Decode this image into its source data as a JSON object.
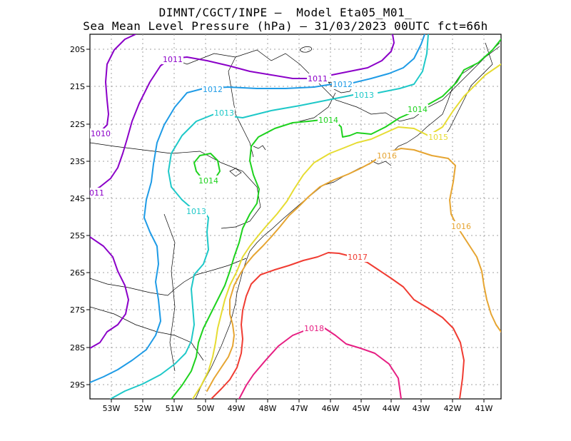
{
  "title_line1": "DIMNT/CGCT/INPE –  Model Eta05_M01_",
  "title_line2": "Sea Mean Level Pressure (hPa) – 31/03/2023 00UTC fct=66h",
  "map": {
    "lat_ticks": [
      "20S",
      "21S",
      "22S",
      "23S",
      "24S",
      "25S",
      "26S",
      "27S",
      "28S",
      "29S"
    ],
    "lon_ticks": [
      "53W",
      "52W",
      "51W",
      "50W",
      "49W",
      "48W",
      "47W",
      "46W",
      "45W",
      "44W",
      "43W",
      "42W",
      "41W"
    ]
  },
  "isobars": [
    {
      "value": "1010",
      "color": "#8b00c8"
    },
    {
      "value": "1011",
      "color": "#8b00c8"
    },
    {
      "value": "1012",
      "color": "#1e9be6"
    },
    {
      "value": "1013",
      "color": "#1ec8c8"
    },
    {
      "value": "1014",
      "color": "#1ed21e"
    },
    {
      "value": "1015",
      "color": "#e6dc32"
    },
    {
      "value": "1016",
      "color": "#e6a532"
    },
    {
      "value": "1017",
      "color": "#f03c32"
    },
    {
      "value": "1018",
      "color": "#e61e82"
    }
  ]
}
